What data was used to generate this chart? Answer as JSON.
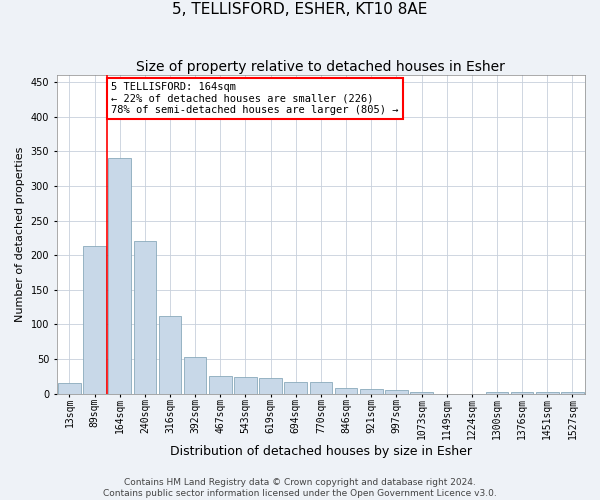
{
  "title": "5, TELLISFORD, ESHER, KT10 8AE",
  "subtitle": "Size of property relative to detached houses in Esher",
  "xlabel": "Distribution of detached houses by size in Esher",
  "ylabel": "Number of detached properties",
  "categories": [
    "13sqm",
    "89sqm",
    "164sqm",
    "240sqm",
    "316sqm",
    "392sqm",
    "467sqm",
    "543sqm",
    "619sqm",
    "694sqm",
    "770sqm",
    "846sqm",
    "921sqm",
    "997sqm",
    "1073sqm",
    "1149sqm",
    "1224sqm",
    "1300sqm",
    "1376sqm",
    "1451sqm",
    "1527sqm"
  ],
  "values": [
    15,
    213,
    340,
    220,
    112,
    53,
    25,
    24,
    23,
    17,
    17,
    8,
    6,
    5,
    2,
    0,
    0,
    3,
    2,
    3,
    2
  ],
  "bar_color": "#c8d8e8",
  "bar_edge_color": "#8aaabb",
  "red_line_index": 2,
  "annotation_text": "5 TELLISFORD: 164sqm\n← 22% of detached houses are smaller (226)\n78% of semi-detached houses are larger (805) →",
  "annotation_box_color": "white",
  "annotation_box_edge_color": "red",
  "ylim": [
    0,
    460
  ],
  "yticks": [
    0,
    50,
    100,
    150,
    200,
    250,
    300,
    350,
    400,
    450
  ],
  "footer_line1": "Contains HM Land Registry data © Crown copyright and database right 2024.",
  "footer_line2": "Contains public sector information licensed under the Open Government Licence v3.0.",
  "background_color": "#eef2f7",
  "plot_background_color": "white",
  "grid_color": "#c8d0dc",
  "title_fontsize": 11,
  "subtitle_fontsize": 10,
  "xlabel_fontsize": 9,
  "ylabel_fontsize": 8,
  "tick_fontsize": 7,
  "footer_fontsize": 6.5,
  "annotation_fontsize": 7.5
}
